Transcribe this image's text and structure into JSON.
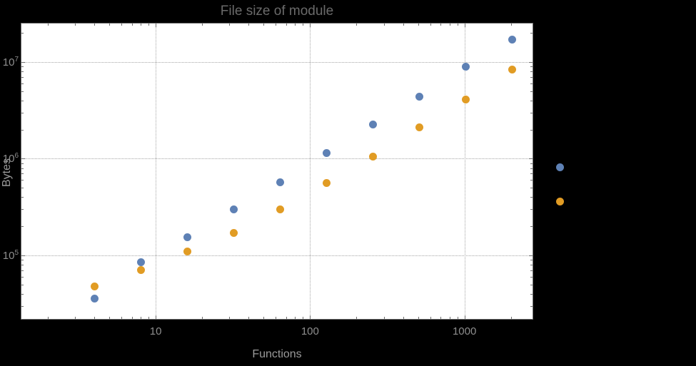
{
  "chart_data": {
    "type": "scatter",
    "title": "File size of module",
    "xlabel": "Functions",
    "ylabel": "Bytes",
    "x_scale": "log",
    "y_scale": "log",
    "xlim": [
      1.35,
      2760
    ],
    "ylim": [
      22000,
      25000000
    ],
    "grid": "dotted lines at labeled decade ticks",
    "background": "#000000",
    "plot_background": "#ffffff",
    "xticks": [
      {
        "label": "10",
        "value": 10
      },
      {
        "label": "100",
        "value": 100
      },
      {
        "label": "1000",
        "value": 1000
      }
    ],
    "yticks": [
      {
        "base": "10",
        "exp": "5",
        "value": 100000
      },
      {
        "base": "10",
        "exp": "6",
        "value": 1000000
      },
      {
        "base": "10",
        "exp": "7",
        "value": 10000000
      }
    ],
    "series": [
      {
        "name": "blue",
        "color": "#5e81b5",
        "x": [
          4,
          8,
          16,
          32,
          64,
          128,
          256,
          512,
          1024,
          2048
        ],
        "y": [
          36000,
          85000,
          155000,
          300000,
          570000,
          1150000,
          2250000,
          4400000,
          8900000,
          17000000
        ]
      },
      {
        "name": "orange",
        "color": "#e19c24",
        "x": [
          4,
          8,
          16,
          32,
          64,
          128,
          256,
          512,
          1024,
          2048
        ],
        "y": [
          48000,
          70000,
          110000,
          170000,
          300000,
          560000,
          1050000,
          2100000,
          4100000,
          8300000
        ]
      }
    ],
    "legend": {
      "position": "outside-right",
      "markers": [
        {
          "color": "#5e81b5"
        },
        {
          "color": "#e19c24"
        }
      ]
    }
  }
}
